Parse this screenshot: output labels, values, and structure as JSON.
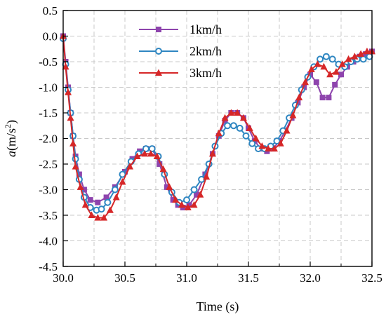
{
  "chart_data": {
    "type": "line",
    "title": "",
    "xlabel": "Time (s)",
    "ylabel_italic": "a",
    "ylabel_unit": "(m/s",
    "ylabel_sup": "2",
    "ylabel_close": ")",
    "xlim": [
      30.0,
      32.5
    ],
    "ylim": [
      -4.5,
      0.5
    ],
    "xticks": [
      30.0,
      30.5,
      31.0,
      31.5,
      32.0,
      32.5
    ],
    "xtick_labels": [
      "30.0",
      "30.5",
      "31.0",
      "31.5",
      "32.0",
      "32.5"
    ],
    "yticks": [
      0.5,
      0.0,
      -0.5,
      -1.0,
      -1.5,
      -2.0,
      -2.5,
      -3.0,
      -3.5,
      -4.0,
      -4.5
    ],
    "ytick_labels": [
      "0.5",
      "0.0",
      "-0.5",
      "-1.0",
      "-1.5",
      "-2.0",
      "-2.5",
      "-3.0",
      "-3.5",
      "-4.0",
      "-4.5"
    ],
    "grid": true,
    "legend_position": "top-center",
    "series": [
      {
        "name": "1km/h",
        "color": "#8e44ad",
        "marker": "square",
        "x": [
          30.0,
          30.02,
          30.04,
          30.06,
          30.08,
          30.1,
          30.13,
          30.17,
          30.22,
          30.28,
          30.35,
          30.42,
          30.5,
          30.56,
          30.62,
          30.67,
          30.72,
          30.78,
          30.84,
          30.89,
          30.93,
          30.97,
          31.02,
          31.08,
          31.15,
          31.21,
          31.26,
          31.31,
          31.36,
          31.41,
          31.46,
          31.5,
          31.55,
          31.6,
          31.65,
          31.7,
          31.75,
          31.8,
          31.85,
          31.9,
          31.95,
          32.0,
          32.05,
          32.1,
          32.15,
          32.2,
          32.25,
          32.3,
          32.35,
          32.4,
          32.45,
          32.5
        ],
        "y": [
          0.0,
          -0.5,
          -1.0,
          -1.5,
          -1.95,
          -2.35,
          -2.7,
          -3.0,
          -3.2,
          -3.25,
          -3.15,
          -2.95,
          -2.65,
          -2.4,
          -2.25,
          -2.2,
          -2.2,
          -2.5,
          -2.95,
          -3.2,
          -3.3,
          -3.35,
          -3.3,
          -3.1,
          -2.7,
          -2.3,
          -1.95,
          -1.65,
          -1.5,
          -1.5,
          -1.6,
          -1.8,
          -2.05,
          -2.2,
          -2.25,
          -2.2,
          -2.05,
          -1.85,
          -1.6,
          -1.3,
          -1.0,
          -0.75,
          -0.9,
          -1.2,
          -1.2,
          -0.95,
          -0.75,
          -0.6,
          -0.5,
          -0.4,
          -0.35,
          -0.3
        ]
      },
      {
        "name": "2km/h",
        "color": "#2e86c1",
        "marker": "circle",
        "x": [
          30.0,
          30.02,
          30.04,
          30.06,
          30.08,
          30.1,
          30.13,
          30.17,
          30.22,
          30.27,
          30.31,
          30.36,
          30.42,
          30.48,
          30.55,
          30.61,
          30.67,
          30.72,
          30.77,
          30.82,
          30.88,
          30.94,
          31.0,
          31.06,
          31.12,
          31.18,
          31.23,
          31.28,
          31.33,
          31.38,
          31.43,
          31.48,
          31.53,
          31.58,
          31.63,
          31.68,
          31.73,
          31.78,
          31.83,
          31.88,
          31.93,
          31.98,
          32.03,
          32.08,
          32.13,
          32.18,
          32.23,
          32.28,
          32.33,
          32.38,
          32.43,
          32.48
        ],
        "y": [
          -0.05,
          -0.55,
          -1.05,
          -1.5,
          -1.95,
          -2.4,
          -2.8,
          -3.15,
          -3.35,
          -3.4,
          -3.38,
          -3.25,
          -3.0,
          -2.7,
          -2.45,
          -2.3,
          -2.2,
          -2.2,
          -2.35,
          -2.7,
          -3.05,
          -3.25,
          -3.2,
          -3.0,
          -2.8,
          -2.5,
          -2.15,
          -1.9,
          -1.75,
          -1.75,
          -1.8,
          -1.95,
          -2.1,
          -2.2,
          -2.2,
          -2.15,
          -2.05,
          -1.85,
          -1.6,
          -1.35,
          -1.05,
          -0.8,
          -0.6,
          -0.45,
          -0.4,
          -0.45,
          -0.55,
          -0.6,
          -0.5,
          -0.45,
          -0.45,
          -0.4
        ]
      },
      {
        "name": "3km/h",
        "color": "#d62728",
        "marker": "triangle",
        "x": [
          30.0,
          30.02,
          30.04,
          30.06,
          30.08,
          30.1,
          30.14,
          30.18,
          30.23,
          30.28,
          30.33,
          30.38,
          30.43,
          30.48,
          30.54,
          30.6,
          30.66,
          30.71,
          30.76,
          30.81,
          30.86,
          30.91,
          30.96,
          31.01,
          31.06,
          31.11,
          31.16,
          31.21,
          31.26,
          31.31,
          31.36,
          31.41,
          31.46,
          31.51,
          31.56,
          31.61,
          31.66,
          31.71,
          31.76,
          31.81,
          31.86,
          31.91,
          31.96,
          32.01,
          32.06,
          32.11,
          32.16,
          32.21,
          32.26,
          32.31,
          32.36,
          32.41,
          32.46,
          32.5
        ],
        "y": [
          0.0,
          -0.6,
          -1.1,
          -1.6,
          -2.1,
          -2.55,
          -2.95,
          -3.3,
          -3.5,
          -3.55,
          -3.55,
          -3.4,
          -3.15,
          -2.85,
          -2.55,
          -2.35,
          -2.3,
          -2.3,
          -2.35,
          -2.6,
          -2.95,
          -3.2,
          -3.3,
          -3.35,
          -3.3,
          -3.1,
          -2.75,
          -2.3,
          -1.9,
          -1.6,
          -1.5,
          -1.5,
          -1.6,
          -1.8,
          -2.0,
          -2.15,
          -2.2,
          -2.2,
          -2.1,
          -1.85,
          -1.55,
          -1.2,
          -0.9,
          -0.65,
          -0.55,
          -0.6,
          -0.75,
          -0.7,
          -0.55,
          -0.45,
          -0.4,
          -0.35,
          -0.3,
          -0.3
        ]
      }
    ]
  }
}
